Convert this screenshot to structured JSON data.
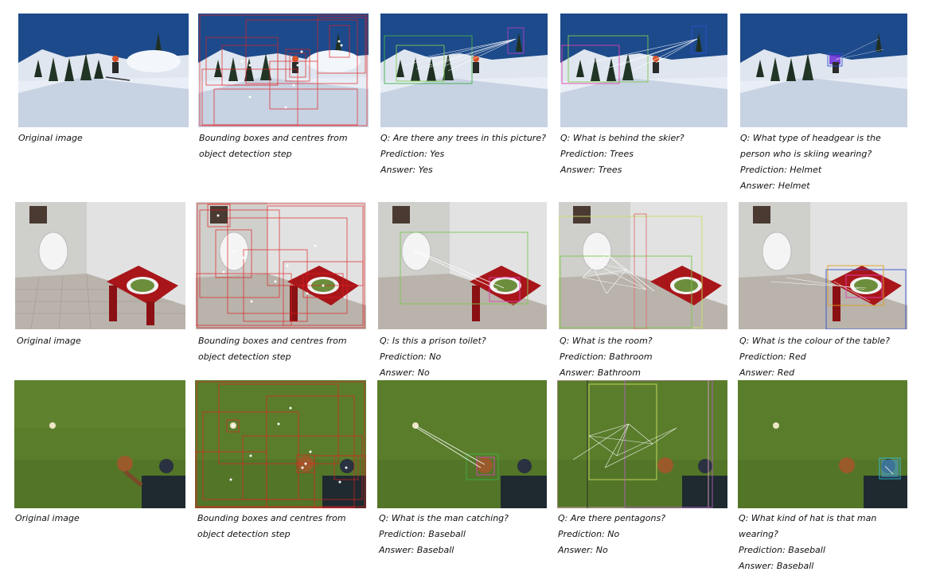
{
  "rows": [
    {
      "scene": "ski",
      "captions": {
        "original": "Original image",
        "detection": [
          "Bounding boxes and centres from",
          "object detection step"
        ],
        "q1": [
          "Q: Are there any trees in this picture?",
          "Prediction: Yes",
          "Answer: Yes"
        ],
        "q2": [
          "Q: What is behind the skier?",
          "Prediction: Trees",
          "Answer: Trees"
        ],
        "q3": [
          "Q: What type of headgear is the",
          "person who is skiing wearing?",
          "Prediction: Helmet",
          "Answer: Helmet"
        ]
      }
    },
    {
      "scene": "bathroom",
      "captions": {
        "original": "Original image",
        "detection": [
          "Bounding boxes and centres from",
          "object detection step"
        ],
        "q1": [
          "Q: Is this a prison toilet?",
          "Prediction: No",
          "Answer: No"
        ],
        "q2": [
          "Q: What is the room?",
          "Prediction: Bathroom",
          "Answer: Bathroom"
        ],
        "q3": [
          "Q: What is the colour of the table?",
          "Prediction: Red",
          "Answer: Red"
        ]
      }
    },
    {
      "scene": "baseball",
      "captions": {
        "original": "Original image",
        "detection": [
          "Bounding boxes and centres from",
          "object detection step"
        ],
        "q1": [
          "Q: What is the man catching?",
          "Prediction: Baseball",
          "Answer: Baseball"
        ],
        "q2": [
          "Q: Are there pentagons?",
          "Prediction: No",
          "Answer: No"
        ],
        "q3": [
          "Q: What kind of hat is that man",
          "wearing?",
          "Prediction: Baseball",
          "Answer: Baseball"
        ]
      }
    }
  ],
  "colors": {
    "sky": "#1d4a8a",
    "snow": "#e9eef6",
    "wall": "#d6d6d6",
    "tile": "#b9b3ab",
    "table": "#a8161a",
    "grass": "#5a7d2c",
    "box_red": "#e02020",
    "attention": "#ffffff"
  }
}
